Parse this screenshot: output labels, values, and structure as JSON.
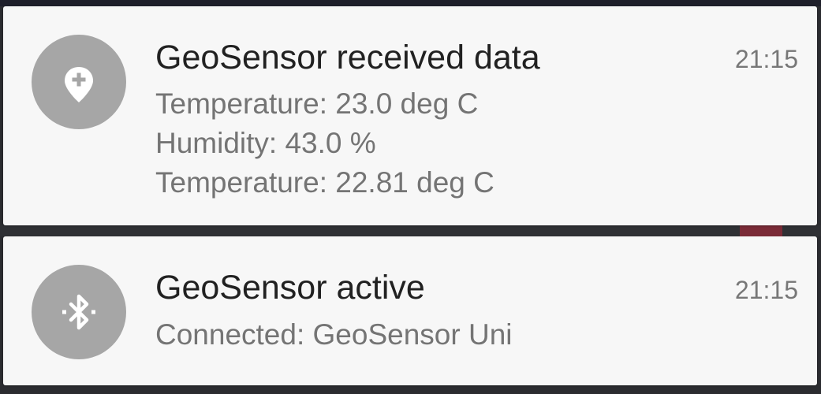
{
  "colors": {
    "card_background": "#f7f7f7",
    "icon_background": "#a6a6a6",
    "title_text": "#212121",
    "body_text": "#747474",
    "time_text": "#777777"
  },
  "notifications": [
    {
      "icon": "location-pin-plus-icon",
      "title": "GeoSensor received data",
      "time": "21:15",
      "lines": [
        "Temperature: 23.0 deg C",
        "Humidity: 43.0 %",
        "Temperature: 22.81 deg C"
      ]
    },
    {
      "icon": "bluetooth-searching-icon",
      "title": "GeoSensor active",
      "time": "21:15",
      "lines": [
        "Connected: GeoSensor Uni"
      ]
    }
  ]
}
